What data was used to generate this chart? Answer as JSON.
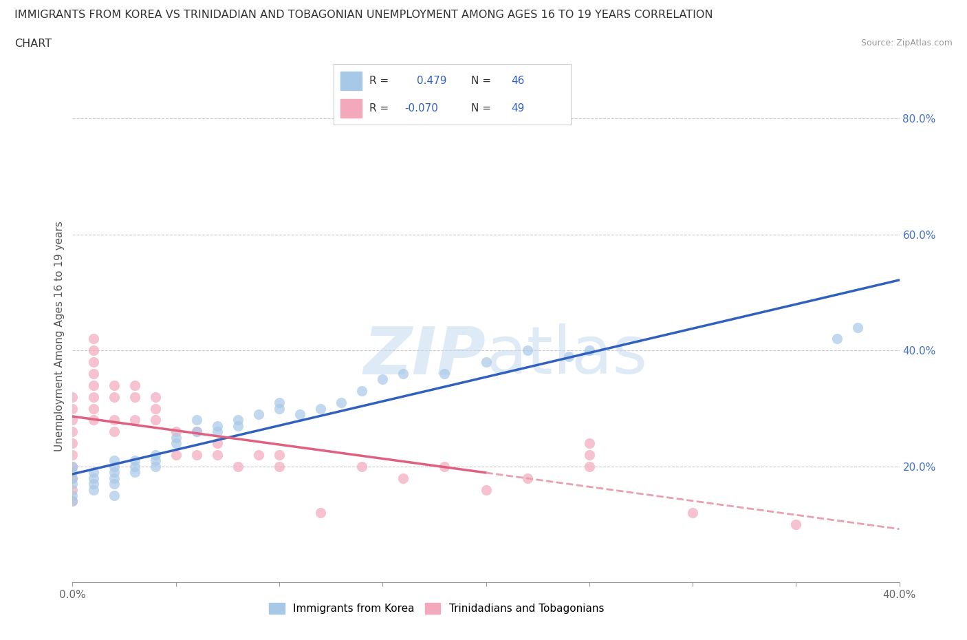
{
  "title_line1": "IMMIGRANTS FROM KOREA VS TRINIDADIAN AND TOBAGONIAN UNEMPLOYMENT AMONG AGES 16 TO 19 YEARS CORRELATION",
  "title_line2": "CHART",
  "source": "Source: ZipAtlas.com",
  "ylabel": "Unemployment Among Ages 16 to 19 years",
  "xlim": [
    0.0,
    0.4
  ],
  "ylim": [
    0.0,
    0.85
  ],
  "ytick_positions": [
    0.0,
    0.2,
    0.4,
    0.6,
    0.8
  ],
  "yticklabels_right": [
    "",
    "20.0%",
    "40.0%",
    "60.0%",
    "80.0%"
  ],
  "korea_R": 0.479,
  "korea_N": 46,
  "tnt_R": -0.07,
  "tnt_N": 49,
  "korea_color": "#a8c8e8",
  "tnt_color": "#f4a8bc",
  "korea_line_color": "#3060c0",
  "tnt_line_solid_color": "#e06080",
  "tnt_line_dash_color": "#e8a0b0",
  "korea_scatter_x": [
    0.0,
    0.0,
    0.0,
    0.0,
    0.0,
    0.0,
    0.01,
    0.01,
    0.01,
    0.01,
    0.02,
    0.02,
    0.02,
    0.02,
    0.02,
    0.02,
    0.03,
    0.03,
    0.03,
    0.04,
    0.04,
    0.04,
    0.05,
    0.05,
    0.06,
    0.06,
    0.07,
    0.07,
    0.08,
    0.08,
    0.09,
    0.1,
    0.1,
    0.11,
    0.12,
    0.13,
    0.14,
    0.15,
    0.16,
    0.18,
    0.2,
    0.22,
    0.24,
    0.25,
    0.37,
    0.38
  ],
  "korea_scatter_y": [
    0.17,
    0.18,
    0.19,
    0.2,
    0.15,
    0.14,
    0.16,
    0.17,
    0.18,
    0.19,
    0.17,
    0.18,
    0.19,
    0.2,
    0.21,
    0.15,
    0.19,
    0.2,
    0.21,
    0.2,
    0.21,
    0.22,
    0.24,
    0.25,
    0.26,
    0.28,
    0.26,
    0.27,
    0.27,
    0.28,
    0.29,
    0.3,
    0.31,
    0.29,
    0.3,
    0.31,
    0.33,
    0.35,
    0.36,
    0.36,
    0.38,
    0.4,
    0.39,
    0.4,
    0.42,
    0.44
  ],
  "tnt_scatter_x": [
    0.0,
    0.0,
    0.0,
    0.0,
    0.0,
    0.0,
    0.0,
    0.0,
    0.0,
    0.0,
    0.01,
    0.01,
    0.01,
    0.01,
    0.01,
    0.01,
    0.01,
    0.01,
    0.02,
    0.02,
    0.02,
    0.02,
    0.03,
    0.03,
    0.03,
    0.04,
    0.04,
    0.04,
    0.05,
    0.05,
    0.06,
    0.06,
    0.07,
    0.07,
    0.08,
    0.09,
    0.1,
    0.1,
    0.12,
    0.14,
    0.16,
    0.18,
    0.2,
    0.22,
    0.25,
    0.25,
    0.25,
    0.3,
    0.35
  ],
  "tnt_scatter_y": [
    0.18,
    0.2,
    0.22,
    0.24,
    0.26,
    0.28,
    0.3,
    0.32,
    0.14,
    0.16,
    0.28,
    0.3,
    0.32,
    0.34,
    0.36,
    0.38,
    0.4,
    0.42,
    0.26,
    0.28,
    0.32,
    0.34,
    0.28,
    0.32,
    0.34,
    0.28,
    0.3,
    0.32,
    0.22,
    0.26,
    0.22,
    0.26,
    0.22,
    0.24,
    0.2,
    0.22,
    0.2,
    0.22,
    0.12,
    0.2,
    0.18,
    0.2,
    0.16,
    0.18,
    0.2,
    0.22,
    0.24,
    0.12,
    0.1
  ],
  "background_color": "#ffffff",
  "grid_color": "#c8c8c8"
}
